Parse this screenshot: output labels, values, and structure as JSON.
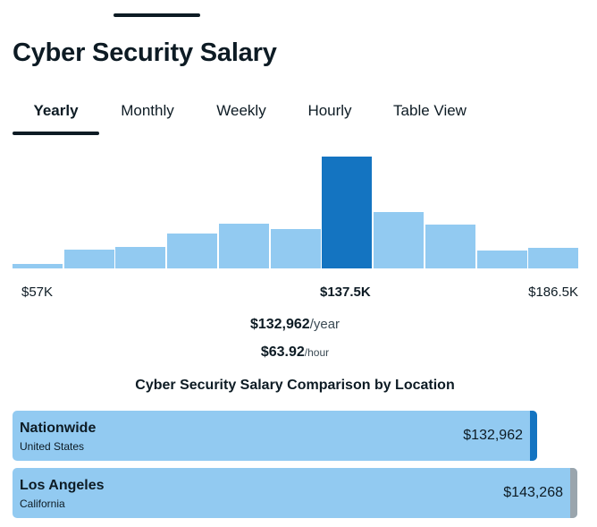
{
  "title": "Cyber Security Salary",
  "tabs": [
    {
      "label": "Yearly",
      "active": true
    },
    {
      "label": "Monthly",
      "active": false
    },
    {
      "label": "Weekly",
      "active": false
    },
    {
      "label": "Hourly",
      "active": false
    },
    {
      "label": "Table View",
      "active": false
    }
  ],
  "chart_data": {
    "type": "bar",
    "title": "",
    "xlabel": "",
    "ylabel": "",
    "categories": [
      "bin-1",
      "bin-2",
      "bin-3",
      "bin-4",
      "bin-5",
      "bin-6",
      "bin-7",
      "bin-8",
      "bin-9",
      "bin-10",
      "bin-11"
    ],
    "values": [
      4,
      17,
      19,
      31,
      40,
      35,
      100,
      50,
      39,
      16,
      18
    ],
    "highlight_index": 6,
    "ylim": [
      0,
      100
    ],
    "axis_labels": {
      "min": "$57K",
      "mid": "$137.5K",
      "max": "$186.5K"
    },
    "colors": {
      "bar": "#92caf1",
      "highlight": "#1474c1"
    }
  },
  "summary": {
    "yearly_value": "$132,962",
    "yearly_unit": "/year",
    "hourly_value": "$63.92",
    "hourly_unit": "/hour"
  },
  "comparison": {
    "title": "Cyber Security Salary Comparison by Location",
    "max_value": 143268,
    "locations": [
      {
        "name": "Nationwide",
        "sub": "United States",
        "value_label": "$132,962",
        "value": 132962,
        "cap_color": "#1474c1"
      },
      {
        "name": "Los Angeles",
        "sub": "California",
        "value_label": "$143,268",
        "value": 143268,
        "cap_color": "#9aa5ad"
      }
    ]
  }
}
